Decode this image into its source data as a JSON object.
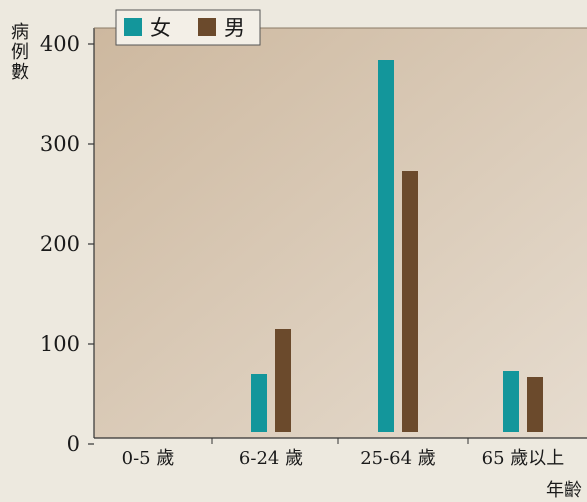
{
  "chart_data": {
    "type": "bar",
    "title": "",
    "ylabel": "病例數",
    "xlabel": "年齡",
    "categories": [
      "0-5 歲",
      "6-24 歲",
      "25-64 歲",
      "65 歲以上"
    ],
    "series": [
      {
        "name": "女",
        "color": "#13969b",
        "values": [
          4,
          70,
          384,
          73
        ]
      },
      {
        "name": "男",
        "color": "#6b4a2c",
        "values": [
          7,
          115,
          273,
          67
        ]
      }
    ],
    "ylim": [
      0,
      410
    ],
    "yticks": [
      0,
      100,
      200,
      300,
      400
    ],
    "legend": "top-left",
    "grid": false
  }
}
